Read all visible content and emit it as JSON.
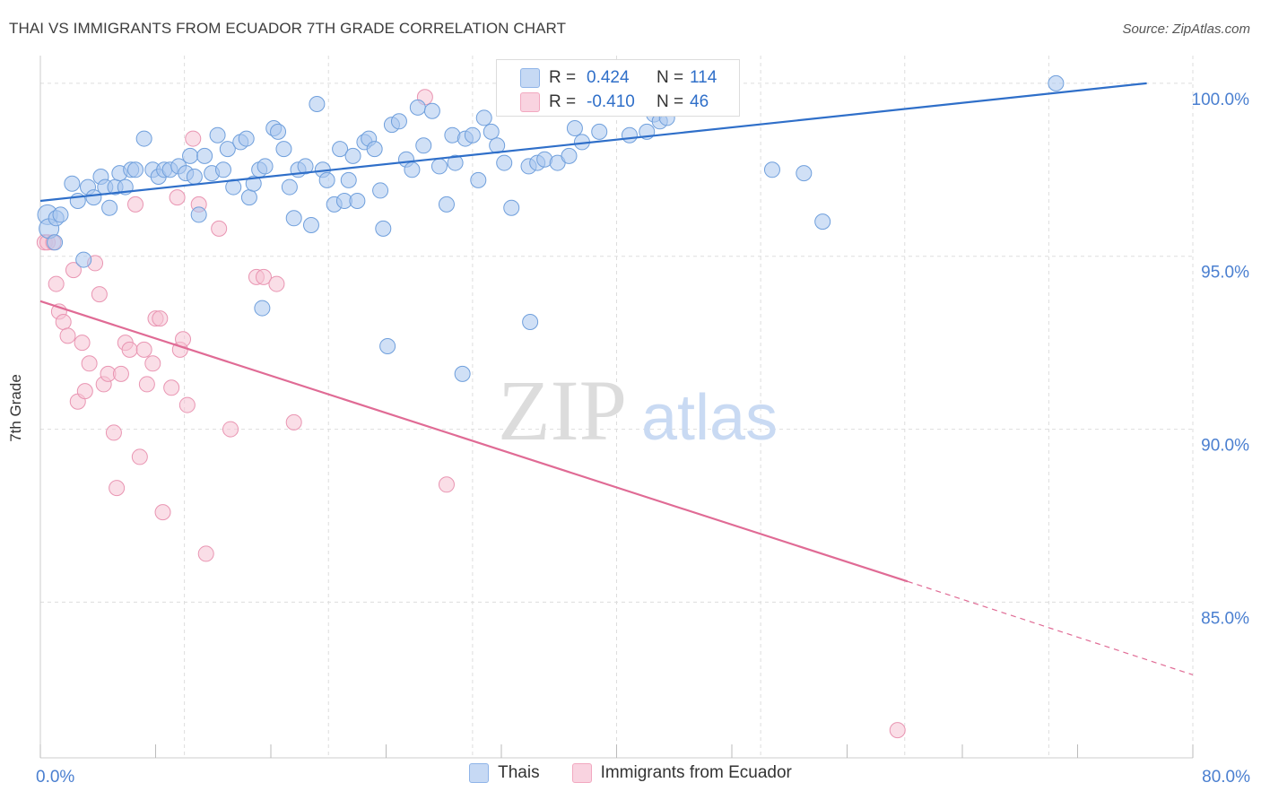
{
  "header": {
    "title": "THAI VS IMMIGRANTS FROM ECUADOR 7TH GRADE CORRELATION CHART",
    "source": "Source: ZipAtlas.com"
  },
  "watermark": {
    "part1": "ZIP",
    "part2": "atlas"
  },
  "stats": {
    "r_label": "R =",
    "n_label": "N =",
    "rows": [
      {
        "r": "0.424",
        "n": "114",
        "color": "#8fb4e8",
        "text_color": "#2f6fc9"
      },
      {
        "r": "-0.410",
        "n": "46",
        "color": "#f2a8c0",
        "text_color": "#2f6fc9"
      }
    ]
  },
  "legend": {
    "items": [
      {
        "label": "Thais",
        "color": "#8fb4e8"
      },
      {
        "label": "Immigrants from Ecuador",
        "color": "#f2a8c0"
      }
    ]
  },
  "colors": {
    "thai_fill": "#a9c6ee",
    "thai_stroke": "#6f9fdc",
    "thai_line": "#2f6fc9",
    "ecu_fill": "#f6c2d3",
    "ecu_stroke": "#e995b2",
    "ecu_line": "#e06b95",
    "axis_text": "#4a7fd0",
    "grid": "#dddddd"
  },
  "chart_data": {
    "type": "scatter",
    "title": "THAI VS IMMIGRANTS FROM ECUADOR 7TH GRADE CORRELATION CHART",
    "xlabel": "",
    "ylabel": "7th Grade",
    "xlim": [
      0,
      80
    ],
    "ylim": [
      80.5,
      100.8
    ],
    "x_tick_labels": [
      {
        "value": 0,
        "label": "0.0%"
      },
      {
        "value": 80,
        "label": "80.0%"
      }
    ],
    "y_ticks": [
      {
        "value": 100,
        "label": "100.0%"
      },
      {
        "value": 95,
        "label": "95.0%"
      },
      {
        "value": 90,
        "label": "90.0%"
      },
      {
        "value": 85,
        "label": "85.0%"
      }
    ],
    "grid": true,
    "legend_position": "bottom",
    "series": [
      {
        "name": "Thais",
        "R": 0.424,
        "N": 114,
        "trend": {
          "x": [
            0,
            76.8
          ],
          "y": [
            96.6,
            100.0
          ]
        },
        "points": [
          [
            0.5,
            96.2
          ],
          [
            0.6,
            95.8
          ],
          [
            1.0,
            95.4
          ],
          [
            1.1,
            96.1
          ],
          [
            1.4,
            96.2
          ],
          [
            2.2,
            97.1
          ],
          [
            2.6,
            96.6
          ],
          [
            3.0,
            94.9
          ],
          [
            3.3,
            97.0
          ],
          [
            3.7,
            96.7
          ],
          [
            4.2,
            97.3
          ],
          [
            4.5,
            97.0
          ],
          [
            4.8,
            96.4
          ],
          [
            5.2,
            97.0
          ],
          [
            5.5,
            97.4
          ],
          [
            5.9,
            97.0
          ],
          [
            6.3,
            97.5
          ],
          [
            6.6,
            97.5
          ],
          [
            7.2,
            98.4
          ],
          [
            7.8,
            97.5
          ],
          [
            8.2,
            97.3
          ],
          [
            8.6,
            97.5
          ],
          [
            9.0,
            97.5
          ],
          [
            9.6,
            97.6
          ],
          [
            10.1,
            97.4
          ],
          [
            10.4,
            97.9
          ],
          [
            10.7,
            97.3
          ],
          [
            11.0,
            96.2
          ],
          [
            11.4,
            97.9
          ],
          [
            11.9,
            97.4
          ],
          [
            12.3,
            98.5
          ],
          [
            12.7,
            97.5
          ],
          [
            13.0,
            98.1
          ],
          [
            13.4,
            97.0
          ],
          [
            13.9,
            98.3
          ],
          [
            14.3,
            98.4
          ],
          [
            14.5,
            96.7
          ],
          [
            14.8,
            97.1
          ],
          [
            15.2,
            97.5
          ],
          [
            15.6,
            97.6
          ],
          [
            16.2,
            98.7
          ],
          [
            16.5,
            98.6
          ],
          [
            16.9,
            98.1
          ],
          [
            17.3,
            97.0
          ],
          [
            17.6,
            96.1
          ],
          [
            17.9,
            97.5
          ],
          [
            18.4,
            97.6
          ],
          [
            18.8,
            95.9
          ],
          [
            19.2,
            99.4
          ],
          [
            19.6,
            97.5
          ],
          [
            19.9,
            97.2
          ],
          [
            20.4,
            96.5
          ],
          [
            20.8,
            98.1
          ],
          [
            21.1,
            96.6
          ],
          [
            21.4,
            97.2
          ],
          [
            21.7,
            97.9
          ],
          [
            22.0,
            96.6
          ],
          [
            22.5,
            98.3
          ],
          [
            22.8,
            98.4
          ],
          [
            23.2,
            98.1
          ],
          [
            23.6,
            96.9
          ],
          [
            23.8,
            95.8
          ],
          [
            24.4,
            98.8
          ],
          [
            24.9,
            98.9
          ],
          [
            25.4,
            97.8
          ],
          [
            25.8,
            97.5
          ],
          [
            26.2,
            99.3
          ],
          [
            26.6,
            98.2
          ],
          [
            27.2,
            99.2
          ],
          [
            27.7,
            97.6
          ],
          [
            28.2,
            96.5
          ],
          [
            28.6,
            98.5
          ],
          [
            28.8,
            97.7
          ],
          [
            29.5,
            98.4
          ],
          [
            30.0,
            98.5
          ],
          [
            30.4,
            97.2
          ],
          [
            30.8,
            99.0
          ],
          [
            31.3,
            98.6
          ],
          [
            31.7,
            98.2
          ],
          [
            32.2,
            97.7
          ],
          [
            32.7,
            96.4
          ],
          [
            33.3,
            99.9
          ],
          [
            33.6,
            99.5
          ],
          [
            33.9,
            97.6
          ],
          [
            34.5,
            97.7
          ],
          [
            35.0,
            97.8
          ],
          [
            35.4,
            99.9
          ],
          [
            35.9,
            97.7
          ],
          [
            36.1,
            99.8
          ],
          [
            36.7,
            97.9
          ],
          [
            37.1,
            98.7
          ],
          [
            37.6,
            98.3
          ],
          [
            38.3,
            99.9
          ],
          [
            38.8,
            98.6
          ],
          [
            39.3,
            100.0
          ],
          [
            39.8,
            99.3
          ],
          [
            40.2,
            99.8
          ],
          [
            40.9,
            98.5
          ],
          [
            41.3,
            99.6
          ],
          [
            41.7,
            100.0
          ],
          [
            42.1,
            98.6
          ],
          [
            42.6,
            99.1
          ],
          [
            43.0,
            98.9
          ],
          [
            43.5,
            99.0
          ],
          [
            44.5,
            99.5
          ],
          [
            46.8,
            99.9
          ],
          [
            50.8,
            97.5
          ],
          [
            53.0,
            97.4
          ],
          [
            54.3,
            96.0
          ],
          [
            70.5,
            100.0
          ],
          [
            15.4,
            93.5
          ],
          [
            24.1,
            92.4
          ],
          [
            29.3,
            91.6
          ],
          [
            34.0,
            93.1
          ]
        ]
      },
      {
        "name": "Immigrants from Ecuador",
        "R": -0.41,
        "N": 46,
        "trend": {
          "x": [
            0,
            60.2
          ],
          "y": [
            93.7,
            85.6
          ]
        },
        "trend_dashed": {
          "x": [
            60.2,
            80
          ],
          "y": [
            85.6,
            82.9
          ]
        },
        "points": [
          [
            0.3,
            95.4
          ],
          [
            0.5,
            95.4
          ],
          [
            0.9,
            95.4
          ],
          [
            1.1,
            94.2
          ],
          [
            1.3,
            93.4
          ],
          [
            1.6,
            93.1
          ],
          [
            1.9,
            92.7
          ],
          [
            2.3,
            94.6
          ],
          [
            2.6,
            90.8
          ],
          [
            2.9,
            92.5
          ],
          [
            3.1,
            91.1
          ],
          [
            3.4,
            91.9
          ],
          [
            3.8,
            94.8
          ],
          [
            4.1,
            93.9
          ],
          [
            4.4,
            91.3
          ],
          [
            4.7,
            91.6
          ],
          [
            5.1,
            89.9
          ],
          [
            5.3,
            88.3
          ],
          [
            5.6,
            91.6
          ],
          [
            5.9,
            92.5
          ],
          [
            6.2,
            92.3
          ],
          [
            6.6,
            96.5
          ],
          [
            6.9,
            89.2
          ],
          [
            7.2,
            92.3
          ],
          [
            7.4,
            91.3
          ],
          [
            7.8,
            91.9
          ],
          [
            8.0,
            93.2
          ],
          [
            8.3,
            93.2
          ],
          [
            8.5,
            87.6
          ],
          [
            9.1,
            91.2
          ],
          [
            9.5,
            96.7
          ],
          [
            9.7,
            92.3
          ],
          [
            9.9,
            92.6
          ],
          [
            10.2,
            90.7
          ],
          [
            10.6,
            98.4
          ],
          [
            11.0,
            96.5
          ],
          [
            11.5,
            86.4
          ],
          [
            12.4,
            95.8
          ],
          [
            13.2,
            90.0
          ],
          [
            15.0,
            94.4
          ],
          [
            15.5,
            94.4
          ],
          [
            16.4,
            94.2
          ],
          [
            17.6,
            90.2
          ],
          [
            26.7,
            99.6
          ],
          [
            28.2,
            88.4
          ],
          [
            59.5,
            81.3
          ]
        ]
      }
    ]
  }
}
